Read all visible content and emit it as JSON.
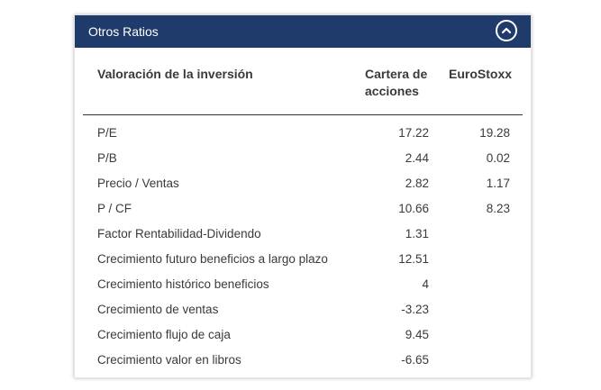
{
  "header": {
    "title": "Otros Ratios",
    "collapse_icon": "chevron-up-icon"
  },
  "table": {
    "columns": {
      "label": "Valoración de la inversión",
      "portfolio": "Cartera de acciones",
      "benchmark": "EuroStoxx"
    },
    "rows": [
      {
        "label": "P/E",
        "portfolio": "17.22",
        "benchmark": "19.28"
      },
      {
        "label": "P/B",
        "portfolio": "2.44",
        "benchmark": "0.02"
      },
      {
        "label": "Precio / Ventas",
        "portfolio": "2.82",
        "benchmark": "1.17"
      },
      {
        "label": "P / CF",
        "portfolio": "10.66",
        "benchmark": "8.23"
      },
      {
        "label": "Factor Rentabilidad-Dividendo",
        "portfolio": "1.31",
        "benchmark": ""
      },
      {
        "label": "Crecimiento futuro beneficios a largo plazo",
        "portfolio": "12.51",
        "benchmark": ""
      },
      {
        "label": "Crecimiento histórico beneficios",
        "portfolio": "4",
        "benchmark": ""
      },
      {
        "label": "Crecimiento de ventas",
        "portfolio": "-3.23",
        "benchmark": ""
      },
      {
        "label": "Crecimiento flujo de caja",
        "portfolio": "9.45",
        "benchmark": ""
      },
      {
        "label": "Crecimiento valor en libros",
        "portfolio": "-6.65",
        "benchmark": ""
      }
    ]
  },
  "colors": {
    "header_bg": "#1f3b6b",
    "text": "#3a3a3a"
  }
}
